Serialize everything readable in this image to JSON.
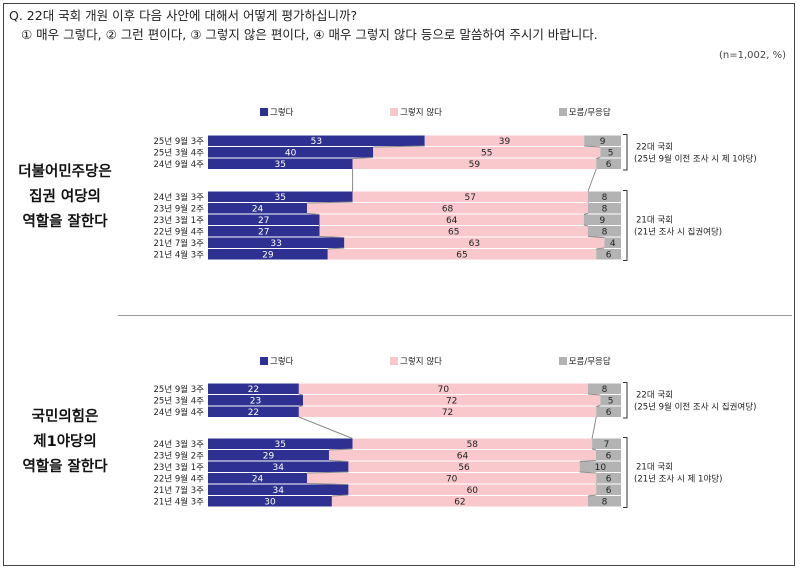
{
  "question": {
    "line1": "Q. 22대 국회 개원 이후 다음 사안에 대해서 어떻게 평가하십니까?",
    "line2": "① 매우 그렇다, ② 그런 편이다, ③ 그렇지 않은 편이다, ④ 매우 그렇지 않다 등으로 말씀하여 주시기 바랍니다.",
    "basis": "(n=1,002, %)"
  },
  "colors": {
    "yes": "#2E3192",
    "no": "#F8C8CC",
    "dk": "#B3B3B3",
    "connector": "#8C8C8C"
  },
  "chart_data": [
    {
      "type": "bar",
      "stacked": "horizontal-100",
      "title_lines": [
        "더불어민주당은",
        "집권 여당의",
        "역할을 잘한다"
      ],
      "legend": [
        "그렇다",
        "그렇지 않다",
        "모름/무응답"
      ],
      "periods": [
        {
          "lines": [
            "22대 국회",
            "(25년 9월 이전 조사 시 제 1야당)"
          ],
          "rows": [
            0,
            2
          ]
        },
        {
          "lines": [
            "21대 국회",
            "(21년 조사 시 집권여당)"
          ],
          "rows": [
            3,
            8
          ]
        }
      ],
      "categories": [
        "25년 9월 3주",
        "25년 3월 4주",
        "24년 9월 4주",
        "24년 3월 3주",
        "23년 9월 2주",
        "23년 3월 1주",
        "22년 9월 4주",
        "21년 7월 3주",
        "21년 4월 3주"
      ],
      "series": [
        {
          "name": "그렇다",
          "values": [
            53,
            40,
            35,
            35,
            24,
            27,
            27,
            33,
            29
          ]
        },
        {
          "name": "그렇지 않다",
          "values": [
            39,
            55,
            59,
            57,
            68,
            64,
            65,
            63,
            65
          ]
        },
        {
          "name": "모름/무응답",
          "values": [
            9,
            5,
            6,
            8,
            8,
            9,
            8,
            4,
            6
          ]
        }
      ],
      "xlim": [
        0,
        100
      ]
    },
    {
      "type": "bar",
      "stacked": "horizontal-100",
      "title_lines": [
        "국민의힘은",
        "제1야당의",
        "역할을 잘한다"
      ],
      "legend": [
        "그렇다",
        "그렇지 않다",
        "모름/무응답"
      ],
      "periods": [
        {
          "lines": [
            "22대 국회",
            "(25년 9월 이전 조사 시 집권여당)"
          ],
          "rows": [
            0,
            2
          ]
        },
        {
          "lines": [
            "21대 국회",
            "(21년 조사 시 제 1야당)"
          ],
          "rows": [
            3,
            8
          ]
        }
      ],
      "categories": [
        "25년 9월 3주",
        "25년 3월 4주",
        "24년 9월 4주",
        "24년 3월 3주",
        "23년 9월 2주",
        "23년 3월 1주",
        "22년 9월 4주",
        "21년 7월 3주",
        "21년 4월 3주"
      ],
      "series": [
        {
          "name": "그렇다",
          "values": [
            22,
            23,
            22,
            35,
            29,
            34,
            24,
            34,
            30
          ]
        },
        {
          "name": "그렇지 않다",
          "values": [
            70,
            72,
            72,
            58,
            64,
            56,
            70,
            60,
            62
          ]
        },
        {
          "name": "모름/무응답",
          "values": [
            8,
            5,
            6,
            7,
            6,
            10,
            6,
            6,
            8
          ]
        }
      ],
      "xlim": [
        0,
        100
      ]
    }
  ]
}
